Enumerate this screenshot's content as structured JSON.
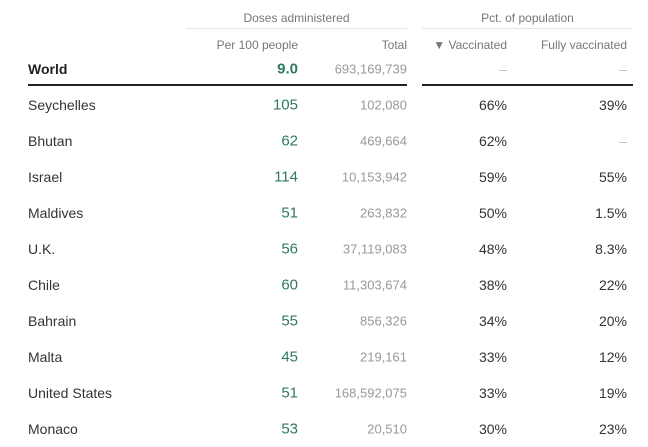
{
  "headers": {
    "doses_group": "Doses administered",
    "pct_group": "Pct. of population",
    "per100": "Per 100 people",
    "total": "Total",
    "vaccinated": "▼ Vaccinated",
    "fully": "Fully vaccinated"
  },
  "world": {
    "name": "World",
    "per100": "9.0",
    "total": "693,169,739",
    "vaccinated": "–",
    "fully": "–"
  },
  "rows": [
    {
      "name": "Seychelles",
      "per100": "105",
      "total": "102,080",
      "vaccinated": "66%",
      "fully": "39%"
    },
    {
      "name": "Bhutan",
      "per100": "62",
      "total": "469,664",
      "vaccinated": "62%",
      "fully": "–"
    },
    {
      "name": "Israel",
      "per100": "114",
      "total": "10,153,942",
      "vaccinated": "59%",
      "fully": "55%"
    },
    {
      "name": "Maldives",
      "per100": "51",
      "total": "263,832",
      "vaccinated": "50%",
      "fully": "1.5%"
    },
    {
      "name": "U.K.",
      "per100": "56",
      "total": "37,119,083",
      "vaccinated": "48%",
      "fully": "8.3%"
    },
    {
      "name": "Chile",
      "per100": "60",
      "total": "11,303,674",
      "vaccinated": "38%",
      "fully": "22%"
    },
    {
      "name": "Bahrain",
      "per100": "55",
      "total": "856,326",
      "vaccinated": "34%",
      "fully": "20%"
    },
    {
      "name": "Malta",
      "per100": "45",
      "total": "219,161",
      "vaccinated": "33%",
      "fully": "12%"
    },
    {
      "name": "United States",
      "per100": "51",
      "total": "168,592,075",
      "vaccinated": "33%",
      "fully": "19%"
    },
    {
      "name": "Monaco",
      "per100": "53",
      "total": "20,510",
      "vaccinated": "30%",
      "fully": "23%"
    }
  ],
  "colors": {
    "accent": "#2e7a5c"
  }
}
